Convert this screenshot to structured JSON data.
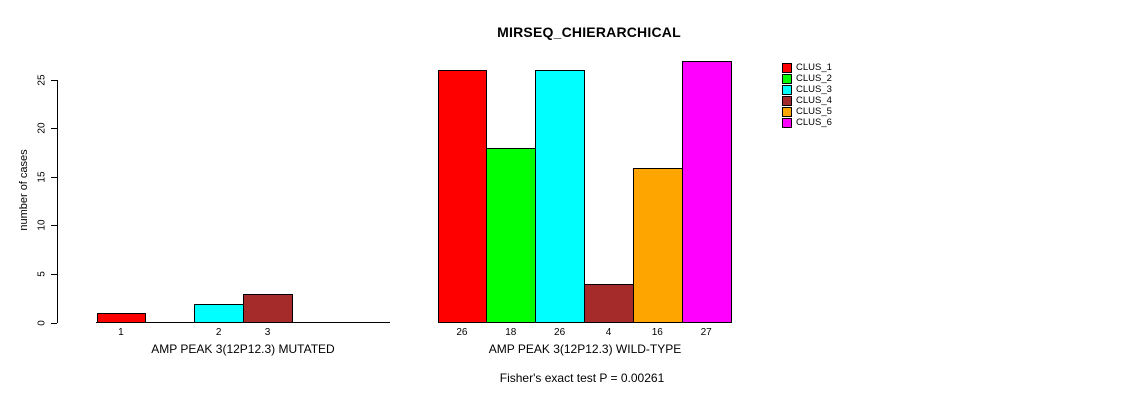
{
  "figure": {
    "background": "#FFFFFF",
    "axis_color": "#000000"
  },
  "legend": {
    "items": [
      {
        "label": "CLUS_1",
        "color": "#FF0000"
      },
      {
        "label": "CLUS_2",
        "color": "#00FF00"
      },
      {
        "label": "CLUS_3",
        "color": "#00FFFF"
      },
      {
        "label": "CLUS_4",
        "color": "#A52A2A"
      },
      {
        "label": "CLUS_5",
        "color": "#FFA500"
      },
      {
        "label": "CLUS_6",
        "color": "#FF00FF"
      }
    ]
  },
  "chart_data": {
    "type": "bar",
    "title": "MIRSEQ_CHIERARCHICAL",
    "ylabel": "number of cases",
    "annotation": "Fisher's exact test P = 0.00261",
    "yticks": [
      0,
      5,
      10,
      15,
      20,
      25
    ],
    "ylim": [
      0,
      27
    ],
    "grid": false,
    "legend_position": "top-right",
    "clusters": [
      "CLUS_1",
      "CLUS_2",
      "CLUS_3",
      "CLUS_4",
      "CLUS_5",
      "CLUS_6"
    ],
    "colors": [
      "#FF0000",
      "#00FF00",
      "#00FFFF",
      "#A52A2A",
      "#FFA500",
      "#FF00FF"
    ],
    "groups": [
      {
        "label": "AMP PEAK 3(12P12.3) MUTATED",
        "values": [
          1,
          0,
          2,
          3,
          0,
          0
        ],
        "bar_labels": [
          "1",
          "",
          "2",
          "3",
          "",
          ""
        ]
      },
      {
        "label": "AMP PEAK 3(12P12.3) WILD-TYPE",
        "values": [
          26,
          18,
          26,
          4,
          16,
          27
        ],
        "bar_labels": [
          "26",
          "18",
          "26",
          "4",
          "16",
          "27"
        ]
      }
    ]
  }
}
